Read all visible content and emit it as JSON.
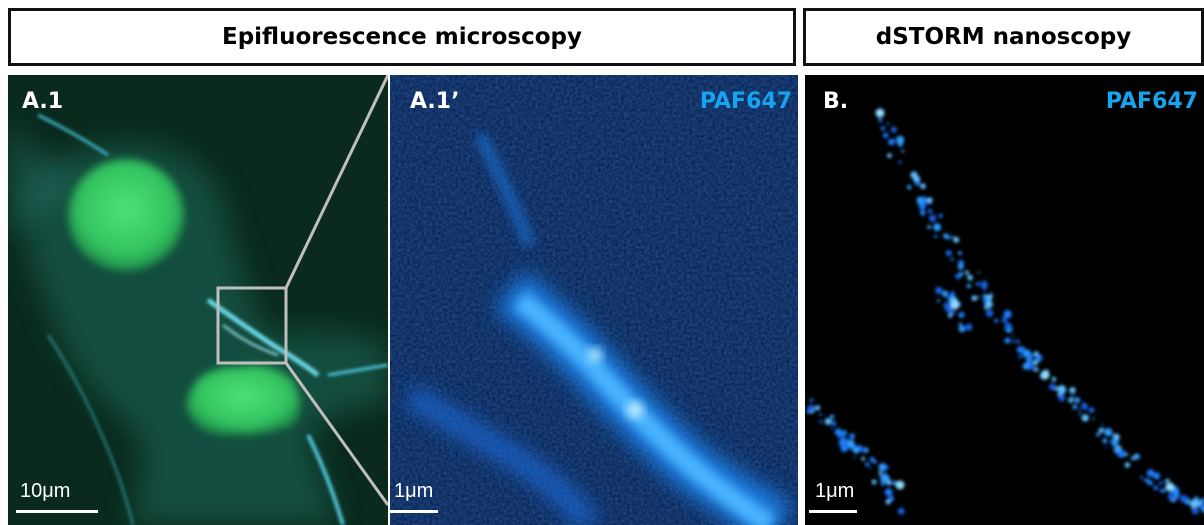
{
  "headers": {
    "epifluorescence": "Epifluorescence microscopy",
    "dstorm": "dSTORM nanoscopy"
  },
  "panels": {
    "a1": {
      "label": "A.1",
      "scale_bar": "10μm"
    },
    "a1_prime": {
      "label": "A.1’",
      "channel": "PAF647",
      "scale_bar": "1μm"
    },
    "b": {
      "label": "B.",
      "channel": "PAF647",
      "scale_bar": "1μm"
    }
  },
  "colors": {
    "channel_label": "#14a4f0",
    "nucleus_green": "#3fcf6a",
    "membrane_cyan": "#5fd2e0",
    "dstorm_blue": "#1a7fff"
  }
}
